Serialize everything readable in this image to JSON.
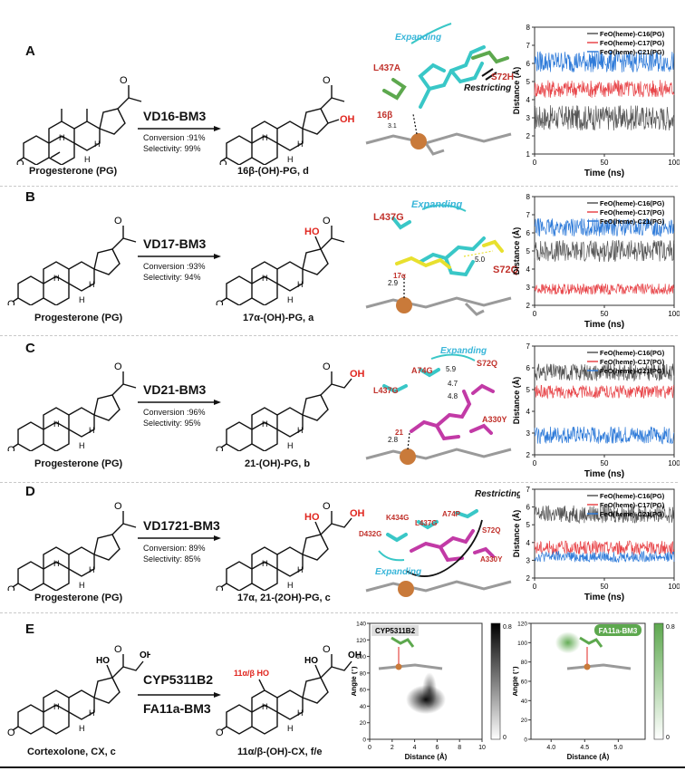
{
  "colors": {
    "c16": "#555555",
    "c17": "#e8474b",
    "c21": "#2f7bd9",
    "ligand_cyan": "#39c7c7",
    "ligand_yellow": "#e8e02e",
    "ligand_magenta": "#c23aa6",
    "residue_red": "#c0302a",
    "hydroxyl_red": "#e0261f",
    "green": "#5da84e"
  },
  "legend": [
    "FeO(heme)-C16(PG)",
    "FeO(heme)-C17(PG)",
    "FeO(heme)-C21(PG)"
  ],
  "panels": [
    {
      "label": "A",
      "enzyme": "VD16-BM3",
      "conversion": "Conversion :91%",
      "selectivity": "Selectivity: 99%",
      "substrate": "Progesterone (PG)",
      "product": "16β-(OH)-PG, d",
      "oh_label": "OH",
      "annotations": {
        "expanding": "Expanding",
        "restricting": "Restricting",
        "res1": "L437A",
        "res2": "S72H",
        "pos": "16β",
        "dist1": "3.1"
      }
    },
    {
      "label": "B",
      "enzyme": "VD17-BM3",
      "conversion": "Conversion :93%",
      "selectivity": "Selectivity: 94%",
      "substrate": "Progesterone (PG)",
      "product": "17α-(OH)-PG, a",
      "oh_label": "HO",
      "annotations": {
        "expanding": "Expanding",
        "res1": "L437G",
        "res2": "S72Q",
        "pos": "17α",
        "dist1": "2.9",
        "dist2": "5.0"
      }
    },
    {
      "label": "C",
      "enzyme": "VD21-BM3",
      "conversion": "Conversion :96%",
      "selectivity": "Selectivity: 95%",
      "substrate": "Progesterone (PG)",
      "product": "21-(OH)-PG, b",
      "oh_label": "OH",
      "annotations": {
        "expanding": "Expanding",
        "res1": "L437G",
        "res2": "S72Q",
        "res3": "A74G",
        "res4": "A330Y",
        "pos": "21",
        "dist1": "2.8",
        "dist2": "5.9",
        "dist3": "4.7",
        "dist4": "4.8"
      }
    },
    {
      "label": "D",
      "enzyme": "VD1721-BM3",
      "conversion": "Conversion: 89%",
      "selectivity": "Selectivity: 85%",
      "substrate": "Progesterone (PG)",
      "product": "17α, 21-(2OH)-PG, c",
      "oh_label": "HO",
      "annotations": {
        "expanding": "Expanding",
        "restricting": "Restricting",
        "res1": "K434G",
        "res2": "D432G",
        "res3": "L437G",
        "res4": "A74P",
        "res5": "S72Q",
        "res6": "A330Y"
      }
    }
  ],
  "panel_e": {
    "label": "E",
    "enzyme1": "CYP5311B2",
    "enzyme2": "FA11a-BM3",
    "substrate": "Cortexolone, CX, c",
    "product": "11α/β-(OH)-CX, f/e",
    "oh_label": "11α/β HO",
    "ho_label": "HO",
    "oh2_label": "OH"
  },
  "chart_data": [
    {
      "type": "line",
      "panel": "A",
      "xlabel": "Time (ns)",
      "ylabel": "Distance (Å)",
      "xlim": [
        0,
        100
      ],
      "ylim": [
        1,
        8
      ],
      "xticks": [
        0,
        50,
        100
      ],
      "yticks": [
        1,
        2,
        3,
        4,
        5,
        6,
        7,
        8
      ],
      "series": [
        {
          "name": "FeO(heme)-C16(PG)",
          "mean": 3.0,
          "spread": 0.7
        },
        {
          "name": "FeO(heme)-C17(PG)",
          "mean": 4.6,
          "spread": 0.5
        },
        {
          "name": "FeO(heme)-C21(PG)",
          "mean": 6.1,
          "spread": 0.6
        }
      ]
    },
    {
      "type": "line",
      "panel": "B",
      "xlabel": "Time (ns)",
      "ylabel": "Distance (Å)",
      "xlim": [
        0,
        100
      ],
      "ylim": [
        2,
        8
      ],
      "xticks": [
        0,
        50,
        100
      ],
      "yticks": [
        2,
        3,
        4,
        5,
        6,
        7,
        8
      ],
      "series": [
        {
          "name": "FeO(heme)-C16(PG)",
          "mean": 5.0,
          "spread": 0.6
        },
        {
          "name": "FeO(heme)-C17(PG)",
          "mean": 2.9,
          "spread": 0.3
        },
        {
          "name": "FeO(heme)-C21(PG)",
          "mean": 6.3,
          "spread": 0.5
        }
      ]
    },
    {
      "type": "line",
      "panel": "C",
      "xlabel": "Time (ns)",
      "ylabel": "Distance (Å)",
      "xlim": [
        0,
        100
      ],
      "ylim": [
        2,
        7
      ],
      "xticks": [
        0,
        50,
        100
      ],
      "yticks": [
        2,
        3,
        4,
        5,
        6,
        7
      ],
      "series": [
        {
          "name": "FeO(heme)-C16(PG)",
          "mean": 5.8,
          "spread": 0.4
        },
        {
          "name": "FeO(heme)-C17(PG)",
          "mean": 4.9,
          "spread": 0.3
        },
        {
          "name": "FeO(heme)-C21(PG)",
          "mean": 2.9,
          "spread": 0.4
        }
      ]
    },
    {
      "type": "line",
      "panel": "D",
      "xlabel": "Time (ns)",
      "ylabel": "Distance (Å)",
      "xlim": [
        0,
        100
      ],
      "ylim": [
        2,
        7
      ],
      "xticks": [
        0,
        50,
        100
      ],
      "yticks": [
        2,
        3,
        4,
        5,
        6,
        7
      ],
      "series": [
        {
          "name": "FeO(heme)-C16(PG)",
          "mean": 5.6,
          "spread": 0.5
        },
        {
          "name": "FeO(heme)-C17(PG)",
          "mean": 3.7,
          "spread": 0.4
        },
        {
          "name": "FeO(heme)-C21(PG)",
          "mean": 3.2,
          "spread": 0.3
        }
      ]
    },
    {
      "type": "heatmap",
      "title": "CYP5311B2",
      "xlabel": "Distance (Å)",
      "ylabel": "Angle (°)",
      "xlim": [
        0,
        10
      ],
      "ylim": [
        0,
        140
      ],
      "xticks": [
        0,
        2,
        4,
        6,
        8,
        10
      ],
      "yticks": [
        0,
        20,
        40,
        60,
        80,
        100,
        120,
        140
      ],
      "colorbar": [
        0,
        0.8
      ],
      "peak": {
        "x": 5.0,
        "y": 48
      }
    },
    {
      "type": "heatmap",
      "title": "FA11a-BM3",
      "xlabel": "Distance (Å)",
      "ylabel": "Angle (°)",
      "xlim": [
        3.7,
        5.4
      ],
      "ylim": [
        0,
        120
      ],
      "xticks": [
        4.0,
        4.5,
        5.0
      ],
      "yticks": [
        0,
        20,
        40,
        60,
        80,
        100,
        120
      ],
      "colorbar": [
        0,
        0.8
      ],
      "peak": {
        "x": 4.25,
        "y": 100
      }
    }
  ]
}
